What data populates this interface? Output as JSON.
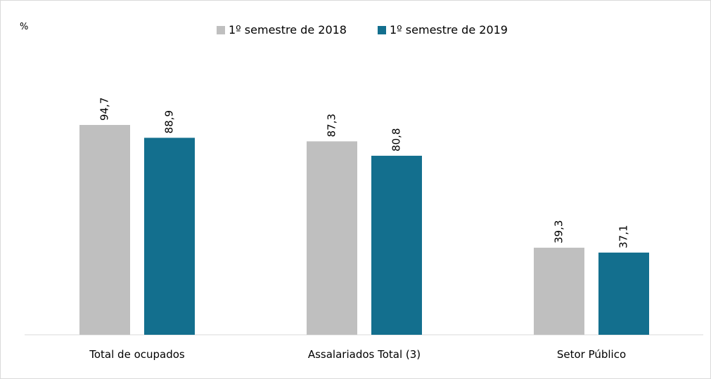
{
  "chart_data": {
    "type": "bar",
    "unit": "%",
    "categories": [
      "Total de ocupados",
      "Assalariados Total (3)",
      "Setor Público"
    ],
    "series": [
      {
        "name": "1º semestre de 2018",
        "color": "#bfbfbf",
        "values": [
          94.7,
          87.3,
          39.3
        ],
        "value_labels": [
          "94,7",
          "87,3",
          "39,3"
        ]
      },
      {
        "name": "1º semestre de 2019",
        "color": "#136f8e",
        "values": [
          88.9,
          80.8,
          37.1
        ],
        "value_labels": [
          "88,9",
          "80,8",
          "37,1"
        ]
      }
    ]
  }
}
